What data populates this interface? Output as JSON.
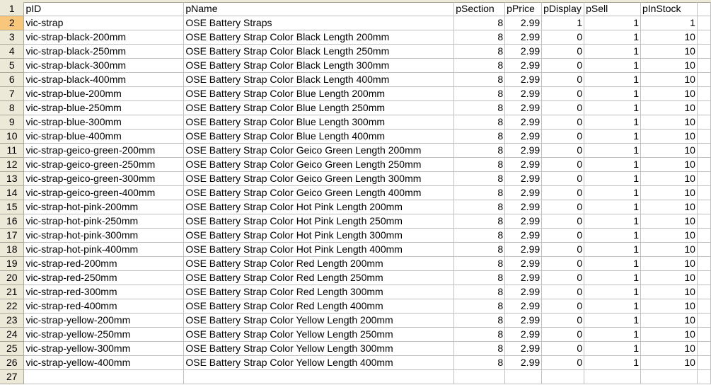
{
  "selected_row": 2,
  "selected_row_color": "#f8c77c",
  "header_row": [
    "pID",
    "pName",
    "pSection",
    "pPrice",
    "pDisplay",
    "pSell",
    "pInStock",
    ""
  ],
  "rows": [
    [
      "vic-strap",
      "OSE Battery Straps",
      "8",
      "2.99",
      "1",
      "1",
      "1"
    ],
    [
      "vic-strap-black-200mm",
      "OSE Battery Strap Color Black Length 200mm",
      "8",
      "2.99",
      "0",
      "1",
      "10"
    ],
    [
      "vic-strap-black-250mm",
      "OSE Battery Strap Color Black Length 250mm",
      "8",
      "2.99",
      "0",
      "1",
      "10"
    ],
    [
      "vic-strap-black-300mm",
      "OSE Battery Strap Color Black Length 300mm",
      "8",
      "2.99",
      "0",
      "1",
      "10"
    ],
    [
      "vic-strap-black-400mm",
      "OSE Battery Strap Color Black Length 400mm",
      "8",
      "2.99",
      "0",
      "1",
      "10"
    ],
    [
      "vic-strap-blue-200mm",
      "OSE Battery Strap Color Blue Length 200mm",
      "8",
      "2.99",
      "0",
      "1",
      "10"
    ],
    [
      "vic-strap-blue-250mm",
      "OSE Battery Strap Color Blue Length 250mm",
      "8",
      "2.99",
      "0",
      "1",
      "10"
    ],
    [
      "vic-strap-blue-300mm",
      "OSE Battery Strap Color Blue Length 300mm",
      "8",
      "2.99",
      "0",
      "1",
      "10"
    ],
    [
      "vic-strap-blue-400mm",
      "OSE Battery Strap Color Blue Length 400mm",
      "8",
      "2.99",
      "0",
      "1",
      "10"
    ],
    [
      "vic-strap-geico-green-200mm",
      "OSE Battery Strap Color Geico Green Length 200mm",
      "8",
      "2.99",
      "0",
      "1",
      "10"
    ],
    [
      "vic-strap-geico-green-250mm",
      "OSE Battery Strap Color Geico Green Length 250mm",
      "8",
      "2.99",
      "0",
      "1",
      "10"
    ],
    [
      "vic-strap-geico-green-300mm",
      "OSE Battery Strap Color Geico Green Length 300mm",
      "8",
      "2.99",
      "0",
      "1",
      "10"
    ],
    [
      "vic-strap-geico-green-400mm",
      "OSE Battery Strap Color Geico Green Length 400mm",
      "8",
      "2.99",
      "0",
      "1",
      "10"
    ],
    [
      "vic-strap-hot-pink-200mm",
      "OSE Battery Strap Color Hot Pink Length 200mm",
      "8",
      "2.99",
      "0",
      "1",
      "10"
    ],
    [
      "vic-strap-hot-pink-250mm",
      "OSE Battery Strap Color Hot Pink Length 250mm",
      "8",
      "2.99",
      "0",
      "1",
      "10"
    ],
    [
      "vic-strap-hot-pink-300mm",
      "OSE Battery Strap Color Hot Pink Length 300mm",
      "8",
      "2.99",
      "0",
      "1",
      "10"
    ],
    [
      "vic-strap-hot-pink-400mm",
      "OSE Battery Strap Color Hot Pink Length 400mm",
      "8",
      "2.99",
      "0",
      "1",
      "10"
    ],
    [
      "vic-strap-red-200mm",
      "OSE Battery Strap Color Red Length 200mm",
      "8",
      "2.99",
      "0",
      "1",
      "10"
    ],
    [
      "vic-strap-red-250mm",
      "OSE Battery Strap Color Red Length 250mm",
      "8",
      "2.99",
      "0",
      "1",
      "10"
    ],
    [
      "vic-strap-red-300mm",
      "OSE Battery Strap Color Red Length 300mm",
      "8",
      "2.99",
      "0",
      "1",
      "10"
    ],
    [
      "vic-strap-red-400mm",
      "OSE Battery Strap Color Red Length 400mm",
      "8",
      "2.99",
      "0",
      "1",
      "10"
    ],
    [
      "vic-strap-yellow-200mm",
      "OSE Battery Strap Color Yellow Length 200mm",
      "8",
      "2.99",
      "0",
      "1",
      "10"
    ],
    [
      "vic-strap-yellow-250mm",
      "OSE Battery Strap Color Yellow Length 250mm",
      "8",
      "2.99",
      "0",
      "1",
      "10"
    ],
    [
      "vic-strap-yellow-300mm",
      "OSE Battery Strap Color Yellow Length 300mm",
      "8",
      "2.99",
      "0",
      "1",
      "10"
    ],
    [
      "vic-strap-yellow-400mm",
      "OSE Battery Strap Color Yellow Length 400mm",
      "8",
      "2.99",
      "0",
      "1",
      "10"
    ],
    [
      "",
      "",
      "",
      "",
      "",
      "",
      ""
    ]
  ]
}
